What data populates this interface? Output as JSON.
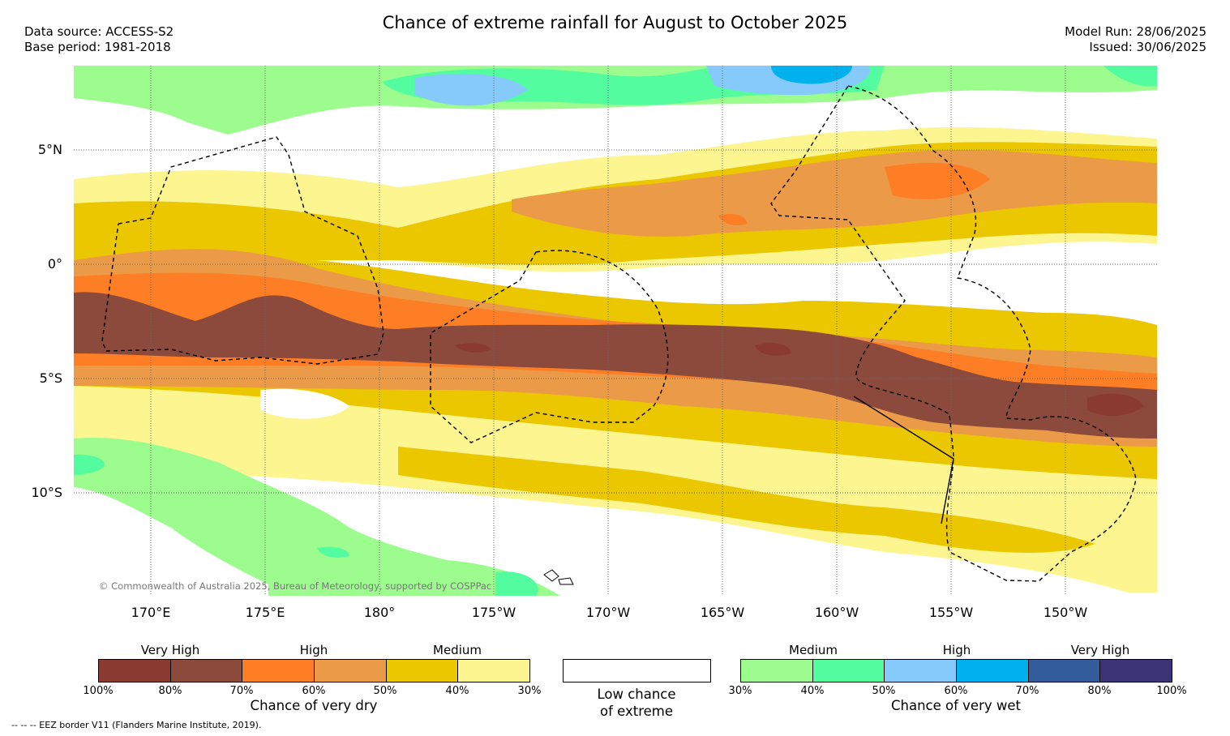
{
  "title": "Chance of extreme rainfall for August to October 2025",
  "data_source": "Data source: ACCESS-S2",
  "base_period": "Base period: 1981-2018",
  "model_run": "Model Run: 28/06/2025",
  "issued": "Issued: 30/06/2025",
  "latitude_labels": [
    "5°N",
    "0°",
    "5°S",
    "10°S"
  ],
  "longitude_labels": [
    "170°E",
    "175°E",
    "180°",
    "175°W",
    "170°W",
    "165°W",
    "160°W",
    "155°W",
    "150°W"
  ],
  "copyright": "© Commonwealth of Australia 2025, Bureau of Meteorology, supported by COSPPac",
  "dry_legend": {
    "headings": [
      "Very High",
      "High",
      "Medium"
    ],
    "colors": [
      "#8a3a30",
      "#8b4a3b",
      "#fd7e24",
      "#eb9a47",
      "#ebc700",
      "#fdf58f"
    ],
    "ticks": [
      "100%",
      "80%",
      "70%",
      "60%",
      "50%",
      "40%",
      "30%"
    ],
    "caption": "Chance of very dry"
  },
  "neutral_legend": {
    "color": "#ffffff",
    "caption_line1": "Low chance",
    "caption_line2": "of extreme"
  },
  "wet_legend": {
    "headings": [
      "Medium",
      "High",
      "Very High"
    ],
    "colors": [
      "#9cfc8e",
      "#52fc9f",
      "#86c9fb",
      "#00b1ee",
      "#335c9c",
      "#3b3477"
    ],
    "ticks": [
      "30%",
      "40%",
      "50%",
      "60%",
      "70%",
      "80%",
      "100%"
    ],
    "caption": "Chance of very wet"
  },
  "eez_note": "--  --  -- EEZ border V11 (Flanders Marine Institute, 2019)."
}
